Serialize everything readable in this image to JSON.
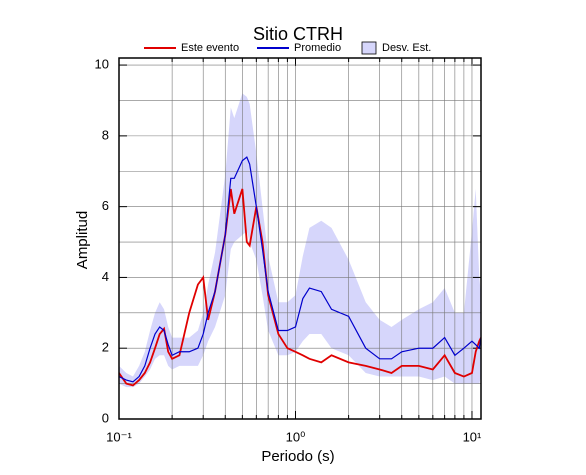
{
  "chart_data": {
    "type": "line",
    "title": "Sitio CTRH",
    "xlabel": "Periodo (s)",
    "ylabel": "Amplitud",
    "xscale": "log",
    "grid": true,
    "legend": "top",
    "xlim": [
      0.1,
      11.25
    ],
    "ylim": [
      0,
      10.2
    ],
    "xticks": [
      {
        "value": 0.1,
        "label": "10⁻¹"
      },
      {
        "value": 1,
        "label": "10⁰"
      },
      {
        "value": 10,
        "label": "10¹"
      }
    ],
    "xgrid": [
      0.2,
      0.3,
      0.4,
      0.5,
      0.6,
      0.7,
      0.8,
      0.9,
      2,
      3,
      4,
      5,
      6,
      7,
      8,
      9
    ],
    "yticks": [
      0,
      2,
      4,
      6,
      8,
      10
    ],
    "ygrid": [
      1,
      2,
      3,
      4,
      5,
      6,
      7,
      8,
      9,
      10
    ],
    "x": [
      0.1,
      0.11,
      0.12,
      0.13,
      0.14,
      0.15,
      0.16,
      0.17,
      0.18,
      0.19,
      0.2,
      0.22,
      0.25,
      0.28,
      0.3,
      0.32,
      0.35,
      0.4,
      0.43,
      0.45,
      0.5,
      0.53,
      0.55,
      0.6,
      0.65,
      0.7,
      0.8,
      0.9,
      1.0,
      1.1,
      1.2,
      1.4,
      1.6,
      2,
      2.5,
      3,
      3.5,
      4,
      5,
      6,
      7,
      8,
      9,
      10,
      10.5,
      11,
      11.25
    ],
    "series": [
      {
        "name": "Este evento",
        "color": "#e00000",
        "values": [
          1.3,
          1.0,
          0.95,
          1.1,
          1.3,
          1.6,
          2.0,
          2.4,
          2.55,
          1.9,
          1.7,
          1.8,
          3.0,
          3.8,
          4.0,
          2.8,
          3.6,
          5.2,
          6.5,
          5.8,
          6.5,
          5.0,
          4.9,
          6.0,
          5.0,
          3.5,
          2.4,
          2.0,
          1.9,
          1.8,
          1.7,
          1.6,
          1.8,
          1.6,
          1.5,
          1.4,
          1.3,
          1.5,
          1.5,
          1.4,
          1.8,
          1.3,
          1.2,
          1.3,
          1.9,
          2.2,
          2.3
        ]
      },
      {
        "name": "Promedio",
        "color": "#0000cc",
        "values": [
          1.2,
          1.1,
          1.05,
          1.2,
          1.5,
          2.0,
          2.4,
          2.6,
          2.5,
          2.1,
          1.8,
          1.9,
          1.9,
          2.0,
          2.4,
          3.0,
          3.6,
          5.2,
          6.8,
          6.8,
          7.3,
          7.4,
          7.2,
          6.0,
          4.8,
          3.6,
          2.5,
          2.5,
          2.6,
          3.4,
          3.7,
          3.6,
          3.1,
          2.9,
          2.0,
          1.7,
          1.7,
          1.9,
          2.0,
          2.0,
          2.3,
          1.8,
          2.0,
          2.2,
          2.1,
          2.0,
          2.3
        ]
      },
      {
        "name": "Desv. Est.",
        "color": "#d6d6fb",
        "lower": [
          1.0,
          0.9,
          0.9,
          1.0,
          1.2,
          1.4,
          1.7,
          1.8,
          1.8,
          1.5,
          1.4,
          1.5,
          1.5,
          1.5,
          1.8,
          2.2,
          2.6,
          3.5,
          4.8,
          5.0,
          5.2,
          5.3,
          5.0,
          4.5,
          3.5,
          2.5,
          1.8,
          1.8,
          1.9,
          2.2,
          2.4,
          2.4,
          2.0,
          1.8,
          1.3,
          1.2,
          1.2,
          1.2,
          1.2,
          1.1,
          1.2,
          1.0,
          1.0,
          1.0,
          1.0,
          1.0,
          1.2
        ],
        "upper": [
          1.5,
          1.3,
          1.2,
          1.5,
          1.9,
          2.5,
          3.0,
          3.3,
          3.1,
          2.6,
          2.3,
          2.3,
          2.3,
          2.5,
          3.0,
          3.8,
          4.7,
          6.9,
          8.8,
          8.5,
          9.2,
          9.1,
          8.9,
          7.5,
          6.0,
          4.6,
          3.3,
          3.3,
          3.5,
          4.6,
          5.4,
          5.6,
          5.4,
          4.5,
          3.3,
          2.8,
          2.6,
          2.8,
          3.1,
          3.3,
          3.7,
          3.0,
          3.0,
          5.3,
          6.5,
          4.0,
          3.5
        ]
      }
    ]
  }
}
